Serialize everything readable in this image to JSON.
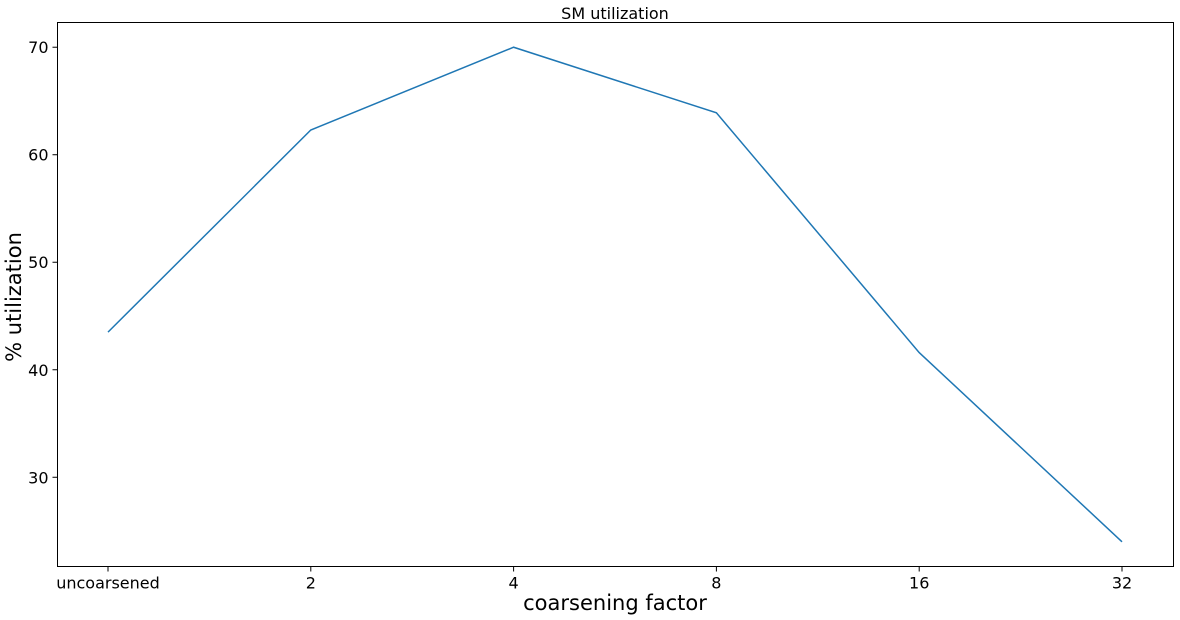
{
  "chart_data": {
    "type": "line",
    "title": "SM utilization",
    "xlabel": "coarsening factor",
    "ylabel": "% utilization",
    "categories": [
      "uncoarsened",
      "2",
      "4",
      "8",
      "16",
      "32"
    ],
    "series": [
      {
        "values": [
          43.5,
          62.3,
          70.0,
          63.9,
          41.6,
          24.0
        ]
      }
    ],
    "yticks": [
      30,
      40,
      50,
      60,
      70
    ],
    "ylim": [
      21.7,
      72.3
    ],
    "grid": false,
    "line_color": "#1f77b4"
  }
}
